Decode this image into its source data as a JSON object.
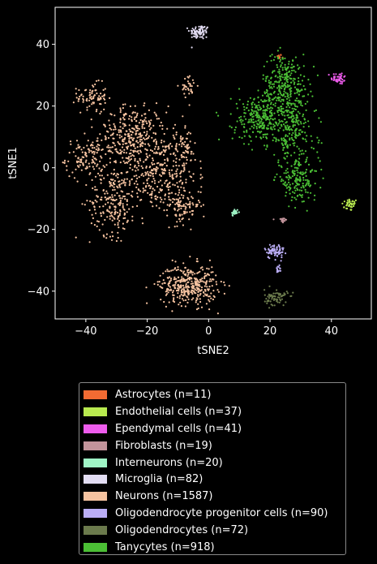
{
  "chart_data": {
    "type": "scatter",
    "xlabel": "tSNE2",
    "ylabel": "tSNE1",
    "xlim": [
      -50,
      53
    ],
    "ylim": [
      -49,
      52
    ],
    "xticks": [
      -40,
      -20,
      0,
      20,
      40
    ],
    "yticks": [
      -40,
      -20,
      0,
      20,
      40
    ],
    "xtick_labels": [
      "−40",
      "−20",
      "0",
      "20",
      "40"
    ],
    "ytick_labels": [
      "−40",
      "−20",
      "0",
      "20",
      "40"
    ],
    "grid": false,
    "legend_position": "below",
    "series": [
      {
        "name": "Astrocytes (n=11)",
        "color": "#f26b33",
        "n": 11,
        "clusters": [
          {
            "x": 23,
            "y": 36,
            "sx": 0.4,
            "sy": 0.4,
            "w": 1
          }
        ]
      },
      {
        "name": "Endothelial cells (n=37)",
        "color": "#b8ea4f",
        "n": 37,
        "clusters": [
          {
            "x": 46,
            "y": -12,
            "sx": 1.3,
            "sy": 1.0,
            "w": 1
          }
        ]
      },
      {
        "name": "Ependymal cells (n=41)",
        "color": "#ee5ced",
        "n": 41,
        "clusters": [
          {
            "x": 42.5,
            "y": 29,
            "sx": 1.3,
            "sy": 1.0,
            "w": 1
          }
        ]
      },
      {
        "name": "Fibroblasts (n=19)",
        "color": "#c3949b",
        "n": 19,
        "clusters": [
          {
            "x": 24,
            "y": -17,
            "sx": 0.7,
            "sy": 0.6,
            "w": 1
          }
        ]
      },
      {
        "name": "Interneurons (n=20)",
        "color": "#9ff5c6",
        "n": 20,
        "clusters": [
          {
            "x": 8.5,
            "y": -14.5,
            "sx": 0.6,
            "sy": 0.6,
            "w": 1
          }
        ]
      },
      {
        "name": "Microglia (n=82)",
        "color": "#e2dcf2",
        "n": 82,
        "clusters": [
          {
            "x": -3,
            "y": 44,
            "sx": 1.6,
            "sy": 1.2,
            "w": 1
          }
        ]
      },
      {
        "name": "Neurons (n=1587)",
        "color": "#f6c3a0",
        "n": 1587,
        "clusters": [
          {
            "x": -38,
            "y": 23,
            "sx": 2.4,
            "sy": 2.2,
            "w": 0.05
          },
          {
            "x": -6.5,
            "y": 26.5,
            "sx": 1.4,
            "sy": 1.6,
            "w": 0.02
          },
          {
            "x": -40,
            "y": 3,
            "sx": 3.3,
            "sy": 3.2,
            "w": 0.07
          },
          {
            "x": -25,
            "y": 10,
            "sx": 5.5,
            "sy": 5.0,
            "w": 0.2
          },
          {
            "x": -17,
            "y": -2,
            "sx": 6.5,
            "sy": 6.5,
            "w": 0.2
          },
          {
            "x": -31,
            "y": -11,
            "sx": 3.8,
            "sy": 5.5,
            "w": 0.13
          },
          {
            "x": -8,
            "y": -12,
            "sx": 2.8,
            "sy": 3.0,
            "w": 0.06
          },
          {
            "x": -8,
            "y": 6,
            "sx": 2.0,
            "sy": 3.0,
            "w": 0.04
          },
          {
            "x": -6.5,
            "y": -38,
            "sx": 4.6,
            "sy": 3.2,
            "w": 0.23
          }
        ]
      },
      {
        "name": "Oligodendrocyte progenitor cells (n=90)",
        "color": "#bbaef6",
        "n": 90,
        "clusters": [
          {
            "x": 21.5,
            "y": -27,
            "sx": 1.6,
            "sy": 1.2,
            "w": 0.85
          },
          {
            "x": 23,
            "y": -33,
            "sx": 0.4,
            "sy": 1.0,
            "w": 0.15
          }
        ]
      },
      {
        "name": "Oligodendrocytes (n=72)",
        "color": "#6b7a4c",
        "n": 72,
        "clusters": [
          {
            "x": 22,
            "y": -42,
            "sx": 1.9,
            "sy": 1.3,
            "w": 1
          }
        ]
      },
      {
        "name": "Tanycytes (n=918)",
        "color": "#4bbf35",
        "n": 918,
        "clusters": [
          {
            "x": 25,
            "y": 27,
            "sx": 3.8,
            "sy": 5.0,
            "w": 0.3
          },
          {
            "x": 17,
            "y": 16,
            "sx": 4.5,
            "sy": 4.0,
            "w": 0.3
          },
          {
            "x": 27,
            "y": 12,
            "sx": 4.0,
            "sy": 5.5,
            "w": 0.22
          },
          {
            "x": 29,
            "y": -4,
            "sx": 3.5,
            "sy": 3.2,
            "w": 0.18
          }
        ]
      }
    ]
  }
}
